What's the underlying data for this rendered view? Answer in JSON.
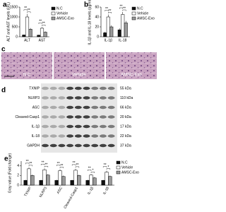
{
  "chart_data": [
    {
      "type": "bar",
      "panel_label": "a",
      "y_label": "ALT and AST levels (U/L)",
      "categories": [
        "ALT",
        "AST"
      ],
      "series": [
        {
          "name": "N.C",
          "color": "#111111",
          "values": [
            90,
            80
          ],
          "errors": [
            20,
            20
          ]
        },
        {
          "name": "Vehicle",
          "color": "#ffffff",
          "values": [
            1000,
            430
          ],
          "errors": [
            150,
            60
          ]
        },
        {
          "name": "AMSC-Exo",
          "color": "#999999",
          "values": [
            380,
            230
          ],
          "errors": [
            60,
            40
          ]
        }
      ],
      "significance": [
        [
          "**",
          "**"
        ],
        [
          "**",
          "**"
        ]
      ],
      "ylim": [
        0,
        1500
      ],
      "yticks": [
        0,
        500,
        1000,
        1500
      ],
      "legend": "right"
    },
    {
      "type": "bar",
      "panel_label": "b",
      "y_label": "IL-1β and IL-18 levels (pg/ml)",
      "categories": [
        "IL-1β",
        "IL-18"
      ],
      "series": [
        {
          "name": "N.C",
          "color": "#111111",
          "values": [
            8,
            14
          ],
          "errors": [
            2,
            3
          ]
        },
        {
          "name": "Vehicle",
          "color": "#ffffff",
          "values": [
            40,
            45
          ],
          "errors": [
            5,
            5
          ]
        },
        {
          "name": "AMSC-Exo",
          "color": "#999999",
          "values": [
            20,
            28
          ],
          "errors": [
            3,
            4
          ]
        }
      ],
      "significance": [
        [
          "**",
          "**"
        ],
        [
          "**",
          "**"
        ]
      ],
      "ylim": [
        0,
        60
      ],
      "yticks": [
        0,
        20,
        40,
        60
      ],
      "legend": "right"
    },
    {
      "type": "bar",
      "panel_label": "e",
      "y_label": "Gray value (Fold change)",
      "categories": [
        "TXNIP",
        "NLRP3",
        "ASC",
        "Cleaved-Casp1",
        "IL-1β",
        "IL-18"
      ],
      "series": [
        {
          "name": "N.C",
          "color": "#111111",
          "values": [
            1,
            1,
            1,
            1,
            1,
            1
          ],
          "errors": [
            0.1,
            0.1,
            0.1,
            0.1,
            0.1,
            0.1
          ]
        },
        {
          "name": "Vehicle",
          "color": "#ffffff",
          "values": [
            3.4,
            3.2,
            3.0,
            3.1,
            2.1,
            2.7
          ],
          "errors": [
            0.3,
            0.3,
            0.3,
            0.3,
            0.2,
            0.3
          ]
        },
        {
          "name": "AMSC-Exo",
          "color": "#999999",
          "values": [
            2.0,
            2.1,
            1.8,
            2.0,
            1.5,
            1.8
          ],
          "errors": [
            0.2,
            0.2,
            0.2,
            0.2,
            0.2,
            0.2
          ]
        }
      ],
      "significance": [
        [
          "**",
          "**"
        ],
        [
          "**",
          "**"
        ],
        [
          "**",
          "**"
        ],
        [
          "**",
          "**"
        ],
        [
          "**",
          "*"
        ],
        [
          "**",
          "*"
        ]
      ],
      "ylim": [
        0,
        5
      ],
      "yticks": [
        0,
        2,
        4
      ],
      "legend": "right"
    }
  ],
  "histology": {
    "panel_label": "c",
    "labels": [
      "N.C",
      "Vehicle",
      "AMSC-Exo"
    ]
  },
  "western_blot": {
    "panel_label": "d",
    "proteins": [
      "TXNIP",
      "NLRP3",
      "ASC",
      "Cleaved-Casp1",
      "IL-1β",
      "IL-18",
      "GAPDH"
    ],
    "sizes": [
      "55 kDa",
      "110 kDa",
      "66 kDa",
      "20 kDa",
      "17 kDa",
      "22 kDa",
      "37 kDa"
    ]
  }
}
